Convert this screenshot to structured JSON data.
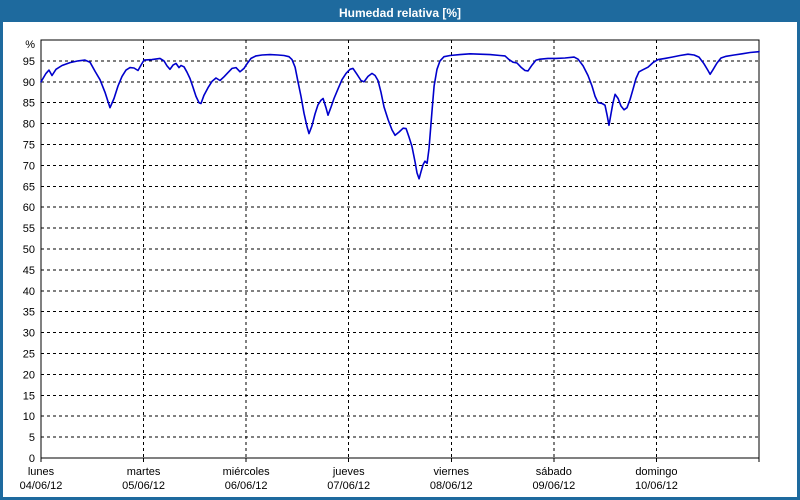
{
  "window": {
    "title": "Humedad relativa [%]",
    "colors": {
      "titlebar": "#1e6a9e",
      "frame": "#1e6a9e",
      "plot_background": "#ffffff",
      "grid": "#000000",
      "axis": "#000000",
      "line": "#0000cc"
    }
  },
  "chart_data": {
    "type": "line",
    "title": "Humedad relativa [%]",
    "xlabel": "",
    "ylabel": "%",
    "ylim": [
      0,
      100
    ],
    "y_ticks": [
      0,
      5,
      10,
      15,
      20,
      25,
      30,
      35,
      40,
      45,
      50,
      55,
      60,
      65,
      70,
      75,
      80,
      85,
      90,
      95
    ],
    "grid": "dashed horizontal every 5%, dashed vertical at each day boundary",
    "legend_position": "none",
    "x_categories": [
      {
        "name": "lunes",
        "date": "04/06/12"
      },
      {
        "name": "martes",
        "date": "05/06/12"
      },
      {
        "name": "miércoles",
        "date": "06/06/12"
      },
      {
        "name": "jueves",
        "date": "07/06/12"
      },
      {
        "name": "viernes",
        "date": "08/06/12"
      },
      {
        "name": "sábado",
        "date": "09/06/12"
      },
      {
        "name": "domingo",
        "date": "10/06/12"
      }
    ],
    "series": [
      {
        "name": "Humedad relativa [%]",
        "x_unit": "days_from_lunes_04_06_12",
        "y_unit": "percent",
        "points": [
          [
            0.0,
            90.0
          ],
          [
            0.049,
            92.0
          ],
          [
            0.078,
            92.8
          ],
          [
            0.107,
            91.5
          ],
          [
            0.146,
            93.0
          ],
          [
            0.205,
            93.9
          ],
          [
            0.283,
            94.6
          ],
          [
            0.361,
            95.0
          ],
          [
            0.429,
            95.2
          ],
          [
            0.478,
            94.7
          ],
          [
            0.527,
            92.5
          ],
          [
            0.575,
            90.5
          ],
          [
            0.624,
            87.5
          ],
          [
            0.673,
            83.8
          ],
          [
            0.712,
            86.0
          ],
          [
            0.751,
            89.0
          ],
          [
            0.79,
            91.3
          ],
          [
            0.829,
            92.8
          ],
          [
            0.868,
            93.4
          ],
          [
            0.907,
            93.3
          ],
          [
            0.946,
            92.7
          ],
          [
            0.975,
            94.0
          ],
          [
            1.004,
            95.2
          ],
          [
            1.082,
            95.3
          ],
          [
            1.16,
            95.6
          ],
          [
            1.199,
            95.0
          ],
          [
            1.228,
            93.8
          ],
          [
            1.258,
            93.0
          ],
          [
            1.287,
            94.0
          ],
          [
            1.316,
            94.4
          ],
          [
            1.345,
            93.4
          ],
          [
            1.365,
            93.9
          ],
          [
            1.394,
            93.6
          ],
          [
            1.423,
            92.3
          ],
          [
            1.453,
            90.8
          ],
          [
            1.482,
            88.7
          ],
          [
            1.511,
            86.5
          ],
          [
            1.54,
            85.0
          ],
          [
            1.56,
            84.8
          ],
          [
            1.589,
            86.8
          ],
          [
            1.628,
            88.6
          ],
          [
            1.667,
            90.1
          ],
          [
            1.706,
            90.9
          ],
          [
            1.745,
            90.3
          ],
          [
            1.784,
            91.2
          ],
          [
            1.823,
            92.2
          ],
          [
            1.862,
            93.2
          ],
          [
            1.901,
            93.4
          ],
          [
            1.94,
            92.4
          ],
          [
            1.979,
            93.2
          ],
          [
            2.008,
            94.3
          ],
          [
            2.047,
            95.6
          ],
          [
            2.096,
            96.2
          ],
          [
            2.155,
            96.4
          ],
          [
            2.233,
            96.5
          ],
          [
            2.311,
            96.4
          ],
          [
            2.369,
            96.3
          ],
          [
            2.418,
            96.0
          ],
          [
            2.447,
            95.3
          ],
          [
            2.477,
            93.5
          ],
          [
            2.506,
            90.0
          ],
          [
            2.535,
            86.5
          ],
          [
            2.564,
            82.5
          ],
          [
            2.594,
            79.2
          ],
          [
            2.613,
            77.6
          ],
          [
            2.642,
            79.5
          ],
          [
            2.671,
            82.3
          ],
          [
            2.701,
            84.5
          ],
          [
            2.73,
            85.6
          ],
          [
            2.75,
            86.0
          ],
          [
            2.779,
            83.8
          ],
          [
            2.798,
            82.0
          ],
          [
            2.828,
            84.0
          ],
          [
            2.857,
            86.0
          ],
          [
            2.896,
            88.3
          ],
          [
            2.935,
            90.5
          ],
          [
            2.974,
            92.0
          ],
          [
            3.013,
            93.0
          ],
          [
            3.042,
            93.2
          ],
          [
            3.081,
            91.8
          ],
          [
            3.12,
            90.3
          ],
          [
            3.149,
            90.0
          ],
          [
            3.188,
            91.3
          ],
          [
            3.227,
            92.0
          ],
          [
            3.257,
            91.5
          ],
          [
            3.286,
            90.3
          ],
          [
            3.315,
            87.5
          ],
          [
            3.344,
            84.0
          ],
          [
            3.383,
            81.0
          ],
          [
            3.422,
            78.5
          ],
          [
            3.452,
            77.2
          ],
          [
            3.491,
            78.0
          ],
          [
            3.53,
            78.9
          ],
          [
            3.559,
            78.8
          ],
          [
            3.588,
            76.8
          ],
          [
            3.617,
            74.5
          ],
          [
            3.647,
            70.8
          ],
          [
            3.666,
            68.2
          ],
          [
            3.686,
            66.8
          ],
          [
            3.705,
            68.5
          ],
          [
            3.725,
            70.2
          ],
          [
            3.744,
            71.0
          ],
          [
            3.764,
            70.5
          ],
          [
            3.783,
            74.0
          ],
          [
            3.812,
            83.0
          ],
          [
            3.832,
            89.0
          ],
          [
            3.861,
            93.0
          ],
          [
            3.89,
            95.0
          ],
          [
            3.929,
            96.0
          ],
          [
            3.988,
            96.3
          ],
          [
            4.085,
            96.5
          ],
          [
            4.183,
            96.7
          ],
          [
            4.28,
            96.6
          ],
          [
            4.378,
            96.5
          ],
          [
            4.475,
            96.3
          ],
          [
            4.524,
            96.2
          ],
          [
            4.563,
            95.3
          ],
          [
            4.602,
            94.7
          ],
          [
            4.641,
            94.5
          ],
          [
            4.68,
            93.5
          ],
          [
            4.719,
            92.7
          ],
          [
            4.748,
            92.6
          ],
          [
            4.787,
            94.0
          ],
          [
            4.826,
            95.2
          ],
          [
            4.865,
            95.4
          ],
          [
            4.943,
            95.6
          ],
          [
            5.021,
            95.6
          ],
          [
            5.109,
            95.7
          ],
          [
            5.197,
            95.9
          ],
          [
            5.236,
            95.4
          ],
          [
            5.285,
            93.8
          ],
          [
            5.333,
            91.5
          ],
          [
            5.372,
            89.0
          ],
          [
            5.402,
            86.5
          ],
          [
            5.431,
            85.0
          ],
          [
            5.47,
            84.8
          ],
          [
            5.499,
            84.4
          ],
          [
            5.519,
            82.0
          ],
          [
            5.538,
            79.6
          ],
          [
            5.558,
            82.5
          ],
          [
            5.577,
            85.0
          ],
          [
            5.597,
            87.0
          ],
          [
            5.626,
            86.0
          ],
          [
            5.655,
            84.2
          ],
          [
            5.684,
            83.3
          ],
          [
            5.713,
            83.8
          ],
          [
            5.743,
            85.8
          ],
          [
            5.772,
            88.2
          ],
          [
            5.801,
            90.8
          ],
          [
            5.83,
            92.4
          ],
          [
            5.869,
            92.9
          ],
          [
            5.918,
            93.5
          ],
          [
            5.967,
            94.6
          ],
          [
            6.016,
            95.3
          ],
          [
            6.084,
            95.6
          ],
          [
            6.152,
            95.9
          ],
          [
            6.23,
            96.3
          ],
          [
            6.308,
            96.6
          ],
          [
            6.367,
            96.4
          ],
          [
            6.415,
            95.9
          ],
          [
            6.464,
            94.3
          ],
          [
            6.503,
            92.7
          ],
          [
            6.523,
            91.8
          ],
          [
            6.552,
            92.9
          ],
          [
            6.591,
            94.5
          ],
          [
            6.63,
            95.7
          ],
          [
            6.679,
            96.1
          ],
          [
            6.757,
            96.4
          ],
          [
            6.835,
            96.7
          ],
          [
            6.913,
            97.0
          ],
          [
            7.0,
            97.2
          ]
        ]
      }
    ]
  }
}
